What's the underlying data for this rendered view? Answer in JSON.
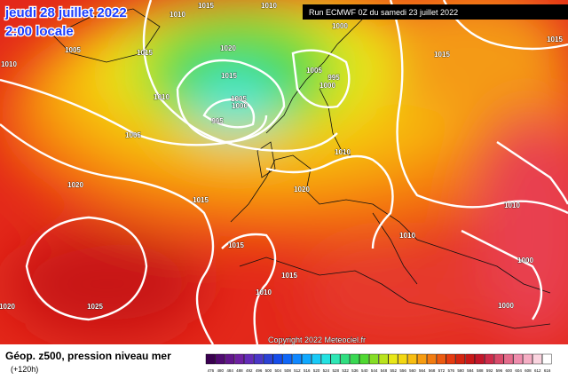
{
  "header": {
    "date": "jeudi 28 juillet 2022",
    "time": "2:00 locale",
    "run": "Run ECMWF 0Z du samedi 23 juillet 2022"
  },
  "isobar_labels": [
    "1010",
    "1015",
    "1010",
    "1000",
    "1005",
    "1015",
    "1020",
    "1010",
    "1015",
    "1005",
    "995",
    "1000",
    "1015",
    "1010",
    "1005",
    "1000",
    "995",
    "1005",
    "1010",
    "1020",
    "1015",
    "1020",
    "1015",
    "1010",
    "1010",
    "1015",
    "1010",
    "1000",
    "1025",
    "1020",
    "1000",
    "1015"
  ],
  "copyright": "Copyright 2022 Meteociel.fr",
  "legend": {
    "title": "Géop. z500, pression niveau mer",
    "lead": "(+120h)",
    "scale": [
      "476",
      "480",
      "484",
      "488",
      "492",
      "496",
      "500",
      "504",
      "508",
      "512",
      "516",
      "520",
      "524",
      "528",
      "532",
      "536",
      "540",
      "544",
      "548",
      "552",
      "556",
      "560",
      "564",
      "568",
      "572",
      "576",
      "580",
      "584",
      "588",
      "592",
      "596",
      "600",
      "604",
      "608",
      "612",
      "616"
    ]
  }
}
